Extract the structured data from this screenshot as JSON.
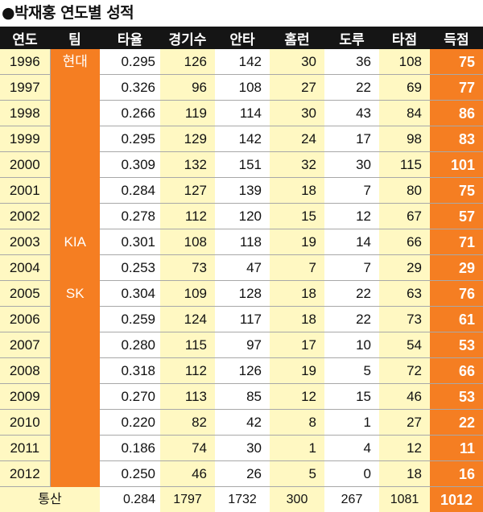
{
  "title": "●박재홍 연도별 성적",
  "headers": [
    "연도",
    "팀",
    "타율",
    "경기수",
    "안타",
    "홈런",
    "도루",
    "타점",
    "득점"
  ],
  "teams": [
    {
      "name": "현대",
      "span": 7
    },
    {
      "name": "KIA",
      "span": 2
    },
    {
      "name": "SK",
      "span": 8
    }
  ],
  "rows": [
    {
      "year": "1996",
      "avg": "0.295",
      "games": "126",
      "hits": "142",
      "hr": "30",
      "sb": "36",
      "rbi": "108",
      "runs": "75"
    },
    {
      "year": "1997",
      "avg": "0.326",
      "games": "96",
      "hits": "108",
      "hr": "27",
      "sb": "22",
      "rbi": "69",
      "runs": "77"
    },
    {
      "year": "1998",
      "avg": "0.266",
      "games": "119",
      "hits": "114",
      "hr": "30",
      "sb": "43",
      "rbi": "84",
      "runs": "86"
    },
    {
      "year": "1999",
      "avg": "0.295",
      "games": "129",
      "hits": "142",
      "hr": "24",
      "sb": "17",
      "rbi": "98",
      "runs": "83"
    },
    {
      "year": "2000",
      "avg": "0.309",
      "games": "132",
      "hits": "151",
      "hr": "32",
      "sb": "30",
      "rbi": "115",
      "runs": "101"
    },
    {
      "year": "2001",
      "avg": "0.284",
      "games": "127",
      "hits": "139",
      "hr": "18",
      "sb": "7",
      "rbi": "80",
      "runs": "75"
    },
    {
      "year": "2002",
      "avg": "0.278",
      "games": "112",
      "hits": "120",
      "hr": "15",
      "sb": "12",
      "rbi": "67",
      "runs": "57"
    },
    {
      "year": "2003",
      "avg": "0.301",
      "games": "108",
      "hits": "118",
      "hr": "19",
      "sb": "14",
      "rbi": "66",
      "runs": "71"
    },
    {
      "year": "2004",
      "avg": "0.253",
      "games": "73",
      "hits": "47",
      "hr": "7",
      "sb": "7",
      "rbi": "29",
      "runs": "29"
    },
    {
      "year": "2005",
      "avg": "0.304",
      "games": "109",
      "hits": "128",
      "hr": "18",
      "sb": "22",
      "rbi": "63",
      "runs": "76"
    },
    {
      "year": "2006",
      "avg": "0.259",
      "games": "124",
      "hits": "117",
      "hr": "18",
      "sb": "22",
      "rbi": "73",
      "runs": "61"
    },
    {
      "year": "2007",
      "avg": "0.280",
      "games": "115",
      "hits": "97",
      "hr": "17",
      "sb": "10",
      "rbi": "54",
      "runs": "53"
    },
    {
      "year": "2008",
      "avg": "0.318",
      "games": "112",
      "hits": "126",
      "hr": "19",
      "sb": "5",
      "rbi": "72",
      "runs": "66"
    },
    {
      "year": "2009",
      "avg": "0.270",
      "games": "113",
      "hits": "85",
      "hr": "12",
      "sb": "15",
      "rbi": "46",
      "runs": "53"
    },
    {
      "year": "2010",
      "avg": "0.220",
      "games": "82",
      "hits": "42",
      "hr": "8",
      "sb": "1",
      "rbi": "27",
      "runs": "22"
    },
    {
      "year": "2011",
      "avg": "0.186",
      "games": "74",
      "hits": "30",
      "hr": "1",
      "sb": "4",
      "rbi": "12",
      "runs": "11"
    },
    {
      "year": "2012",
      "avg": "0.250",
      "games": "46",
      "hits": "26",
      "hr": "5",
      "sb": "0",
      "rbi": "18",
      "runs": "16"
    }
  ],
  "total": {
    "label": "통산",
    "avg": "0.284",
    "games": "1797",
    "hits": "1732",
    "hr": "300",
    "sb": "267",
    "rbi": "1081",
    "runs": "1012"
  },
  "colors": {
    "header_bg": "#151515",
    "accent_orange": "#f57e22",
    "cream": "#fff8c2"
  },
  "chart_data": {
    "type": "table",
    "title": "●박재홍 연도별 성적",
    "columns": [
      "연도",
      "팀",
      "타율",
      "경기수",
      "안타",
      "홈런",
      "도루",
      "타점",
      "득점"
    ],
    "rows": [
      [
        "1996",
        "현대",
        0.295,
        126,
        142,
        30,
        36,
        108,
        75
      ],
      [
        "1997",
        "현대",
        0.326,
        96,
        108,
        27,
        22,
        69,
        77
      ],
      [
        "1998",
        "현대",
        0.266,
        119,
        114,
        30,
        43,
        84,
        86
      ],
      [
        "1999",
        "현대",
        0.295,
        129,
        142,
        24,
        17,
        98,
        83
      ],
      [
        "2000",
        "현대",
        0.309,
        132,
        151,
        32,
        30,
        115,
        101
      ],
      [
        "2001",
        "현대",
        0.284,
        127,
        139,
        18,
        7,
        80,
        75
      ],
      [
        "2002",
        "현대",
        0.278,
        112,
        120,
        15,
        12,
        67,
        57
      ],
      [
        "2003",
        "KIA",
        0.301,
        108,
        118,
        19,
        14,
        66,
        71
      ],
      [
        "2004",
        "KIA",
        0.253,
        73,
        47,
        7,
        7,
        29,
        29
      ],
      [
        "2005",
        "SK",
        0.304,
        109,
        128,
        18,
        22,
        63,
        76
      ],
      [
        "2006",
        "SK",
        0.259,
        124,
        117,
        18,
        22,
        73,
        61
      ],
      [
        "2007",
        "SK",
        0.28,
        115,
        97,
        17,
        10,
        54,
        53
      ],
      [
        "2008",
        "SK",
        0.318,
        112,
        126,
        19,
        5,
        72,
        66
      ],
      [
        "2009",
        "SK",
        0.27,
        113,
        85,
        12,
        15,
        46,
        53
      ],
      [
        "2010",
        "SK",
        0.22,
        82,
        42,
        8,
        1,
        27,
        22
      ],
      [
        "2011",
        "SK",
        0.186,
        74,
        30,
        1,
        4,
        12,
        11
      ],
      [
        "2012",
        "SK",
        0.25,
        46,
        26,
        5,
        0,
        18,
        16
      ]
    ],
    "total": [
      "통산",
      "",
      0.284,
      1797,
      1732,
      300,
      267,
      1081,
      1012
    ]
  }
}
